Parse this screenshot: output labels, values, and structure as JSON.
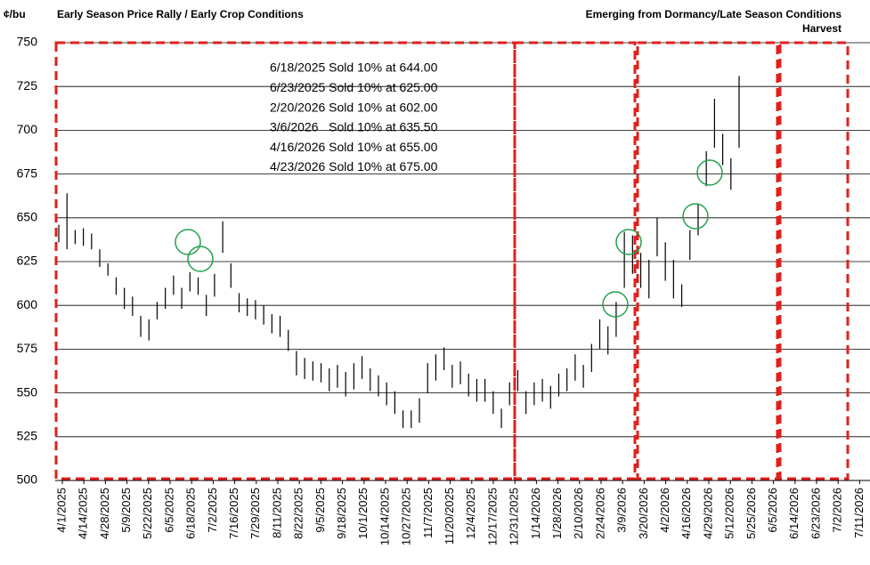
{
  "chart_data": {
    "type": "ohlc",
    "y_unit": "¢/bu",
    "section_titles": [
      "Early Season Price Rally / Early Crop Conditions",
      "Emerging from Dormancy/Late Season Conditions",
      "Harvest"
    ],
    "annotations": [
      "6/18/2025 Sold 10% at 644.00",
      "6/23/2025 Sold 10% at 625.00",
      "2/20/2026 Sold 10% at 602.00",
      "3/6/2026   Sold 10% at 635.50",
      "4/16/2026 Sold 10% at 655.00",
      "4/23/2026 Sold 10% at 675.00"
    ],
    "categories": [
      "4/1/2025",
      "4/14/2025",
      "4/28/2025",
      "5/9/2025",
      "5/22/2025",
      "6/5/2025",
      "6/18/2025",
      "7/2/2025",
      "7/16/2025",
      "7/29/2025",
      "8/11/2025",
      "8/22/2025",
      "9/5/2025",
      "9/18/2025",
      "10/1/2025",
      "10/14/2025",
      "10/27/2025",
      "11/7/2025",
      "11/20/2025",
      "12/4/2025",
      "12/17/2025",
      "12/31/2025",
      "1/14/2026",
      "1/28/2026",
      "2/10/2026",
      "2/24/2026",
      "3/9/2026",
      "3/20/2026",
      "4/2/2026",
      "4/16/2026",
      "4/29/2026",
      "5/12/2026",
      "5/25/2026",
      "6/5/2026",
      "6/14/2026",
      "6/23/2026",
      "7/2/2026",
      "7/11/2026"
    ],
    "high": [
      646,
      664,
      643,
      644,
      641,
      632,
      624,
      616,
      610,
      605,
      594,
      592,
      602,
      610,
      617,
      610,
      619,
      616,
      606,
      618,
      648,
      624,
      607,
      604,
      603,
      600,
      595,
      594,
      586,
      574,
      570,
      568,
      567,
      564,
      566,
      562,
      567,
      571,
      564,
      560,
      556,
      551,
      540,
      540,
      547,
      567,
      572,
      576,
      566,
      568,
      561,
      558,
      558,
      551,
      541,
      556,
      563,
      551,
      556,
      558,
      554,
      561,
      564,
      572,
      566,
      578,
      592,
      588,
      602,
      642,
      640,
      630,
      626,
      650,
      636,
      626,
      612,
      643,
      658,
      688,
      718,
      698,
      684,
      731
    ],
    "low": [
      636,
      632,
      635,
      634,
      632,
      622,
      617,
      606,
      598,
      594,
      582,
      580,
      592,
      598,
      606,
      598,
      608,
      606,
      594,
      605,
      630,
      610,
      596,
      594,
      592,
      589,
      584,
      582,
      574,
      560,
      558,
      557,
      556,
      551,
      553,
      548,
      552,
      558,
      551,
      548,
      543,
      538,
      530,
      530,
      533,
      550,
      557,
      563,
      553,
      555,
      548,
      545,
      545,
      538,
      530,
      543,
      551,
      538,
      543,
      545,
      541,
      548,
      551,
      557,
      553,
      562,
      575,
      572,
      582,
      610,
      618,
      610,
      604,
      628,
      614,
      604,
      599,
      626,
      640,
      668,
      690,
      680,
      666,
      690
    ],
    "color": "#000000",
    "ylim": [
      500,
      750
    ],
    "yticks": [
      500,
      525,
      550,
      575,
      600,
      625,
      650,
      675,
      700,
      725,
      750
    ],
    "grid": true
  }
}
